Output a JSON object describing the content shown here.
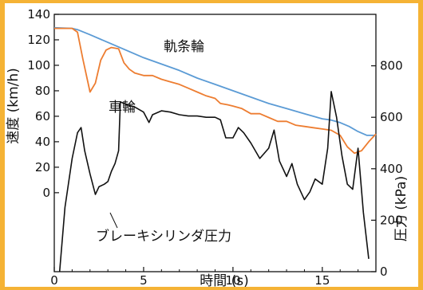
{
  "chart_data": {
    "type": "line",
    "xlabel": "時間 (s)",
    "ylabel_left": "速度 (km/h)",
    "ylabel_right": "圧力 (kPa)",
    "x_ticks": [
      "0",
      "5",
      "10",
      "15"
    ],
    "y_left_ticks": [
      "0",
      "20",
      "40",
      "60",
      "80",
      "100",
      "120",
      "140"
    ],
    "y_right_ticks": [
      "0",
      "200",
      "400",
      "600",
      "800"
    ],
    "xlim": [
      0,
      18
    ],
    "ylim_left": [
      -62,
      140
    ],
    "ylim_right": [
      0,
      1000
    ],
    "grid": false,
    "colors": {
      "rail_wheel": "#5b9bd5",
      "wheel": "#ed7d31",
      "pressure": "#111111"
    },
    "annotations": {
      "rail_wheel": "軌条輪",
      "wheel": "車輪",
      "pressure": "ブレーキシリンダ圧力"
    },
    "series": [
      {
        "key": "rail_wheel",
        "axis": "left",
        "x": [
          0,
          1,
          1.3,
          2,
          3,
          4,
          5,
          6,
          7,
          8,
          9,
          10,
          11,
          12,
          13,
          14,
          15,
          15.5,
          16,
          16.5,
          17,
          17.5,
          18
        ],
        "y": [
          129.5,
          129,
          128,
          124,
          118,
          112,
          106,
          101,
          96,
          90,
          85,
          80,
          75,
          70,
          66,
          62,
          58,
          57,
          55,
          52,
          48,
          45,
          45
        ]
      },
      {
        "key": "wheel",
        "axis": "left",
        "x": [
          0,
          1,
          1.3,
          1.6,
          2,
          2.3,
          2.6,
          2.9,
          3.2,
          3.6,
          3.9,
          4.2,
          4.5,
          5,
          5.5,
          6,
          6.5,
          7,
          7.5,
          8,
          8.5,
          9,
          9.3,
          9.7,
          10,
          10.5,
          11,
          11.5,
          12,
          12.5,
          13,
          13.5,
          14,
          14.5,
          15,
          15.5,
          16,
          16.4,
          16.8,
          17.2,
          17.6,
          18
        ],
        "y": [
          129,
          129,
          126,
          105,
          79,
          86,
          104,
          112,
          114,
          113,
          102,
          97,
          94,
          92,
          92,
          89,
          87,
          85,
          82,
          79,
          76,
          74,
          70,
          69,
          68,
          66,
          62,
          62,
          59,
          56,
          56,
          53,
          52,
          51,
          50,
          49,
          45,
          36,
          31,
          33,
          40,
          46
        ]
      },
      {
        "key": "pressure",
        "axis": "right",
        "x": [
          0.3,
          0.6,
          1,
          1.3,
          1.5,
          1.7,
          2,
          2.3,
          2.5,
          2.8,
          3,
          3.2,
          3.4,
          3.6,
          3.7,
          4,
          4.5,
          5,
          5.3,
          5.5,
          6,
          6.5,
          7,
          7.5,
          8,
          8.5,
          9,
          9.3,
          9.6,
          10,
          10.3,
          10.6,
          11,
          11.5,
          12,
          12.3,
          12.6,
          13,
          13.3,
          13.6,
          14,
          14.3,
          14.6,
          15,
          15.3,
          15.5,
          15.8,
          16.1,
          16.4,
          16.7,
          17,
          17.3,
          17.6
        ],
        "y": [
          0,
          250,
          440,
          540,
          560,
          470,
          380,
          300,
          330,
          340,
          350,
          390,
          420,
          470,
          660,
          650,
          640,
          620,
          580,
          610,
          625,
          620,
          610,
          605,
          605,
          600,
          600,
          590,
          520,
          520,
          560,
          540,
          500,
          440,
          480,
          550,
          430,
          370,
          420,
          340,
          280,
          310,
          360,
          340,
          480,
          700,
          600,
          450,
          340,
          320,
          480,
          230,
          50
        ]
      }
    ]
  }
}
